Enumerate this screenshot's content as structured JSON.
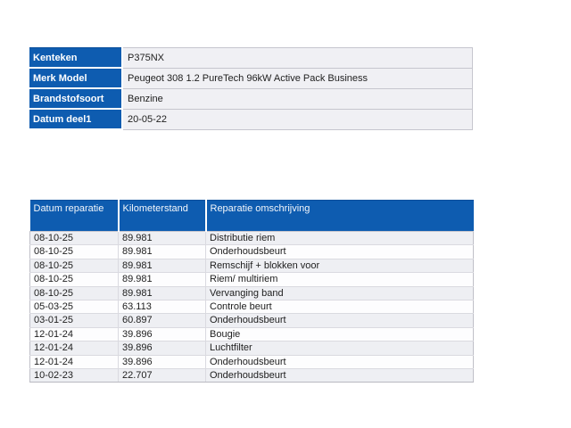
{
  "colors": {
    "header_blue": "#0e5cb0",
    "stripe_gray": "#eeeff3",
    "info_value_bg": "#f0f0f4",
    "page_bg": "#ffffff"
  },
  "vehicle_info": {
    "rows": [
      {
        "label": "Kenteken",
        "value": "P375NX"
      },
      {
        "label": "Merk Model",
        "value": "Peugeot 308 1.2 PureTech 96kW Active Pack Business"
      },
      {
        "label": "Brandstofsoort",
        "value": "Benzine"
      },
      {
        "label": "Datum deel1",
        "value": "20-05-22"
      }
    ]
  },
  "maintenance": {
    "columns": [
      "Datum reparatie",
      "Kilometerstand",
      "Reparatie omschrijving"
    ],
    "rows": [
      [
        "08-10-25",
        "89.981",
        "Distributie riem"
      ],
      [
        "08-10-25",
        "89.981",
        "Onderhoudsbeurt"
      ],
      [
        "08-10-25",
        "89.981",
        "Remschijf + blokken voor"
      ],
      [
        "08-10-25",
        "89.981",
        "Riem/ multiriem"
      ],
      [
        "08-10-25",
        "89.981",
        "Vervanging band"
      ],
      [
        "05-03-25",
        "63.113",
        "Controle beurt"
      ],
      [
        "03-01-25",
        "60.897",
        "Onderhoudsbeurt"
      ],
      [
        "12-01-24",
        "39.896",
        "Bougie"
      ],
      [
        "12-01-24",
        "39.896",
        "Luchtfilter"
      ],
      [
        "12-01-24",
        "39.896",
        "Onderhoudsbeurt"
      ],
      [
        "10-02-23",
        "22.707",
        "Onderhoudsbeurt"
      ]
    ]
  }
}
